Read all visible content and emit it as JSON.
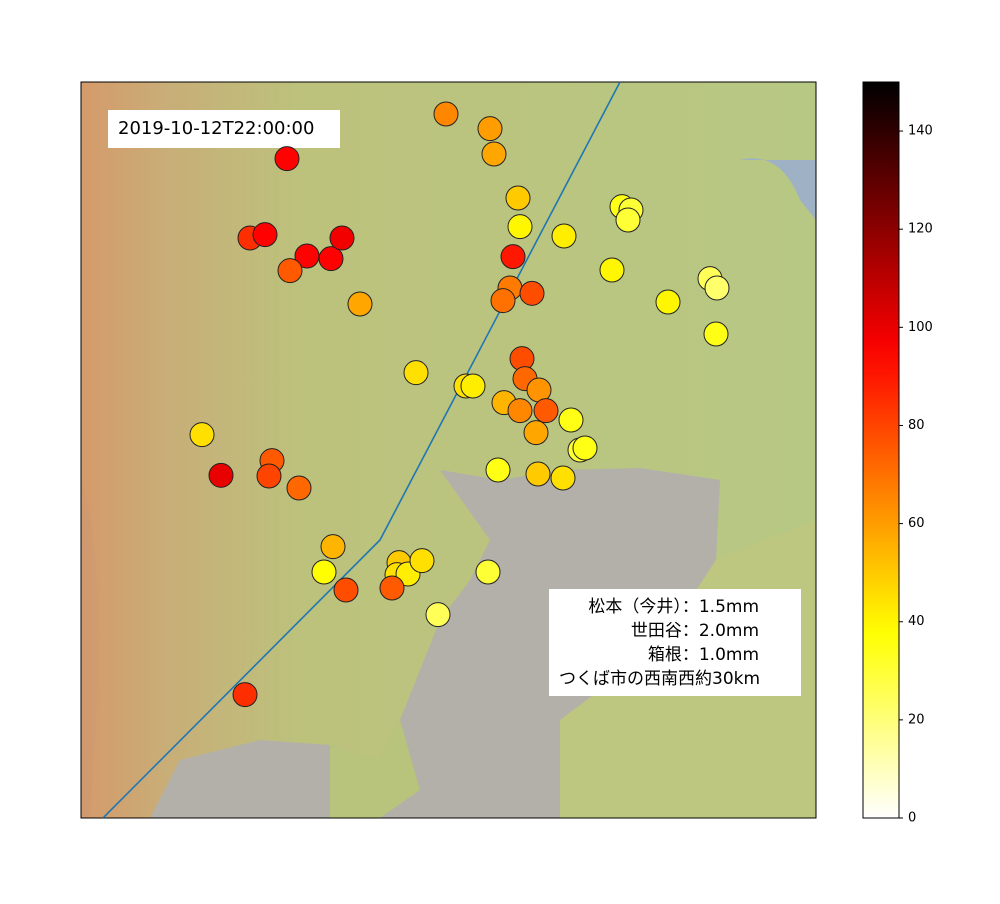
{
  "chart_data": {
    "type": "scatter",
    "colormap": "hot_r",
    "x": [
      139.73,
      139.818,
      139.826,
      139.412,
      139.874,
      139.878,
      140.082,
      140.1,
      140.094,
      139.966,
      139.338,
      139.368,
      139.452,
      139.5,
      139.522,
      139.418,
      139.864,
      140.062,
      140.258,
      140.272,
      139.858,
      139.844,
      139.902,
      139.558,
      140.174,
      140.27,
      139.882,
      139.888,
      139.67,
      139.77,
      139.784,
      139.916,
      139.846,
      139.878,
      139.93,
      139.98,
      139.91,
      139.242,
      139.998,
      140.008,
      139.28,
      139.382,
      139.376,
      139.436,
      139.834,
      139.914,
      139.964,
      139.504,
      139.486,
      139.636,
      139.632,
      139.654,
      139.682,
      139.53,
      139.622,
      139.814,
      139.714,
      139.328
    ],
    "y": [
      36.252,
      36.23,
      36.192,
      36.185,
      36.126,
      36.083,
      36.113,
      36.108,
      36.093,
      36.069,
      36.066,
      36.071,
      36.039,
      36.035,
      36.066,
      36.017,
      36.038,
      36.018,
      36.005,
      35.991,
      35.991,
      35.972,
      35.983,
      35.967,
      35.97,
      35.922,
      35.885,
      35.855,
      35.864,
      35.844,
      35.844,
      35.838,
      35.819,
      35.807,
      35.807,
      35.793,
      35.774,
      35.771,
      35.748,
      35.751,
      35.71,
      35.732,
      35.709,
      35.691,
      35.718,
      35.712,
      35.706,
      35.603,
      35.565,
      35.579,
      35.561,
      35.562,
      35.582,
      35.538,
      35.541,
      35.565,
      35.501,
      35.381
    ],
    "values": [
      65,
      60,
      58,
      95,
      50,
      40,
      35,
      30,
      30,
      42,
      85,
      95,
      95,
      95,
      98,
      75,
      90,
      40,
      25,
      22,
      68,
      70,
      78,
      58,
      40,
      35,
      78,
      72,
      45,
      45,
      42,
      62,
      55,
      65,
      75,
      35,
      58,
      45,
      30,
      35,
      100,
      75,
      80,
      72,
      35,
      50,
      45,
      55,
      38,
      50,
      45,
      42,
      45,
      78,
      75,
      30,
      25,
      85
    ],
    "xlim": [
      139.0,
      140.47
    ],
    "ylim": [
      35.196,
      36.3
    ],
    "track": {
      "color": "#1f77b4",
      "x": [
        139.044,
        139.598,
        140.078
      ],
      "y": [
        35.196,
        35.613,
        36.3
      ]
    },
    "clim": [
      0,
      150
    ],
    "cticks": [
      0,
      20,
      40,
      60,
      80,
      100,
      120,
      140
    ],
    "title": "2019-10-12T22:00:00",
    "annotation": [
      "松本（今井）：1.5mm",
      "世田谷：2.0mm",
      "箱根：1.0mm",
      "つくば市の西南西約30km"
    ]
  }
}
